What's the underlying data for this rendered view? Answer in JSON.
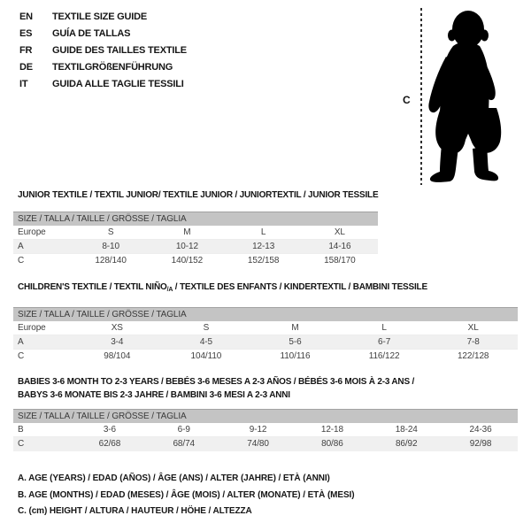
{
  "figure": {
    "height_label": "C"
  },
  "languages": [
    {
      "code": "EN",
      "title": "TEXTILE SIZE GUIDE"
    },
    {
      "code": "ES",
      "title": "GUÍA DE TALLAS"
    },
    {
      "code": "FR",
      "title": "GUIDE DES TAILLES TEXTILE"
    },
    {
      "code": "DE",
      "title": "TEXTILGRÖßENFÜHRUNG"
    },
    {
      "code": "IT",
      "title": "GUIDA ALLE TAGLIE TESSILI"
    }
  ],
  "tables": [
    {
      "id": "junior",
      "title_segments": [
        {
          "text": "JUNIOR TEXTILE / TEXTIL JUNIOR/ TEXTILE JUNIOR / JUNIORTEXTIL / JUNIOR TESSILE"
        }
      ],
      "size_header": "SIZE / TALLA / TAILLE / GRÖSSE / TAGLIA",
      "rows": [
        {
          "label": "Europe",
          "shaded": false,
          "values": [
            "S",
            "M",
            "L",
            "XL"
          ]
        },
        {
          "label": "A",
          "shaded": true,
          "values": [
            "8-10",
            "10-12",
            "12-13",
            "14-16"
          ]
        },
        {
          "label": "C",
          "shaded": false,
          "values": [
            "128/140",
            "140/152",
            "152/158",
            "158/170"
          ]
        }
      ]
    },
    {
      "id": "children",
      "title_segments": [
        {
          "text": "CHILDREN'S TEXTILE / TEXTIL NIÑO"
        },
        {
          "text": "/A",
          "sub": true
        },
        {
          "text": " / TEXTILE DES ENFANTS / KINDERTEXTIL / BAMBINI TESSILE"
        }
      ],
      "size_header": "SIZE / TALLA / TAILLE / GRÖSSE / TAGLIA",
      "rows": [
        {
          "label": "Europe",
          "shaded": false,
          "values": [
            "XS",
            "S",
            "M",
            "L",
            "XL"
          ]
        },
        {
          "label": "A",
          "shaded": true,
          "values": [
            "3-4",
            "4-5",
            "5-6",
            "6-7",
            "7-8"
          ]
        },
        {
          "label": "C",
          "shaded": false,
          "values": [
            "98/104",
            "104/110",
            "110/116",
            "116/122",
            "122/128"
          ]
        }
      ]
    },
    {
      "id": "babies",
      "title_segments": [
        {
          "text": "BABIES 3-6 MONTH TO 2-3 YEARS / BEBÉS 3-6 MESES A 2-3 AÑOS / BÉBÉS 3-6 MOIS À 2-3 ANS /"
        }
      ],
      "title_line2": "BABYS 3-6 MONATE BIS 2-3 JAHRE / BAMBINI 3-6 MESI A 2-3 ANNI",
      "size_header": "SIZE / TALLA / TAILLE / GRÖSSE / TAGLIA",
      "rows": [
        {
          "label": "B",
          "shaded": false,
          "values": [
            "3-6",
            "6-9",
            "9-12",
            "12-18",
            "18-24",
            "24-36"
          ]
        },
        {
          "label": "C",
          "shaded": true,
          "values": [
            "62/68",
            "68/74",
            "74/80",
            "80/86",
            "86/92",
            "92/98"
          ]
        }
      ]
    }
  ],
  "notes": [
    "A. AGE (YEARS) / EDAD (AÑOS) / ÂGE (ANS) / ALTER (JAHRE) / ETÀ (ANNI)",
    "B. AGE (MONTHS) / EDAD (MESES) / ÂGE (MOIS) / ALTER (MONATE) / ETÀ (MESI)",
    "C. (cm) HEIGHT / ALTURA / HAUTEUR / HÖHE / ALTEZZA"
  ],
  "colors": {
    "header_bg": "#c4c4c4",
    "header_border": "#a2a2a2",
    "shaded_row_bg": "#f0f0f0",
    "table_text": "#3f3f3f",
    "title_text": "#141414",
    "silhouette": "#000000"
  }
}
